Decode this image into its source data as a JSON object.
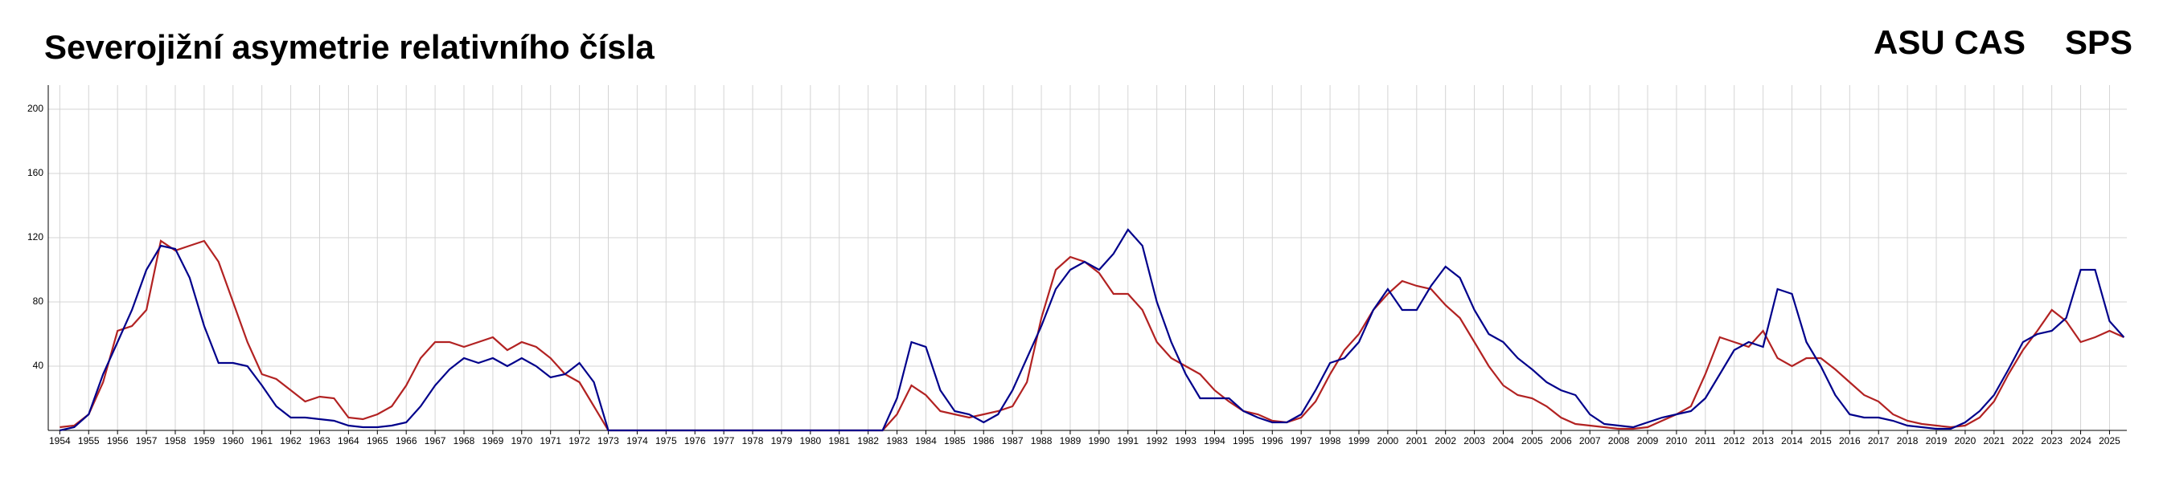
{
  "title": "Severojižní asymetrie relativního čísla",
  "labels": [
    "ASU CAS",
    "SPS"
  ],
  "chart_data": {
    "type": "line",
    "x": [
      1954,
      1954.5,
      1955,
      1955.5,
      1956,
      1956.5,
      1957,
      1957.5,
      1958,
      1958.5,
      1959,
      1959.5,
      1960,
      1960.5,
      1961,
      1961.5,
      1962,
      1962.5,
      1963,
      1963.5,
      1964,
      1964.5,
      1965,
      1965.5,
      1966,
      1966.5,
      1967,
      1967.5,
      1968,
      1968.5,
      1969,
      1969.5,
      1970,
      1970.5,
      1971,
      1971.5,
      1972,
      1972.5,
      1973,
      1973.5,
      1974,
      1974.5,
      1975,
      1975.5,
      1976,
      1976.5,
      1977,
      1977.5,
      1978,
      1978.5,
      1979,
      1979.5,
      1980,
      1980.5,
      1981,
      1981.5,
      1982,
      1982.5,
      1983,
      1983.5,
      1984,
      1984.5,
      1985,
      1985.5,
      1986,
      1986.5,
      1987,
      1987.5,
      1988,
      1988.5,
      1989,
      1989.5,
      1990,
      1990.5,
      1991,
      1991.5,
      1992,
      1992.5,
      1993,
      1993.5,
      1994,
      1994.5,
      1995,
      1995.5,
      1996,
      1996.5,
      1997,
      1997.5,
      1998,
      1998.5,
      1999,
      1999.5,
      2000,
      2000.5,
      2001,
      2001.5,
      2002,
      2002.5,
      2003,
      2003.5,
      2004,
      2004.5,
      2005,
      2005.5,
      2006,
      2006.5,
      2007,
      2007.5,
      2008,
      2008.5,
      2009,
      2009.5,
      2010,
      2010.5,
      2011,
      2011.5,
      2012,
      2012.5,
      2013,
      2013.5,
      2014,
      2014.5,
      2015,
      2015.5,
      2016,
      2016.5,
      2017,
      2017.5,
      2018,
      2018.5,
      2019,
      2019.5,
      2020,
      2020.5,
      2021,
      2021.5,
      2022,
      2022.5,
      2023,
      2023.5,
      2024,
      2024.5,
      2025,
      2025.5
    ],
    "series": [
      {
        "color": "#b22222",
        "values": [
          2,
          3,
          10,
          30,
          62,
          65,
          75,
          118,
          112,
          115,
          118,
          105,
          80,
          55,
          35,
          32,
          25,
          18,
          21,
          20,
          8,
          7,
          10,
          15,
          28,
          45,
          55,
          55,
          52,
          55,
          58,
          50,
          55,
          52,
          45,
          35,
          30,
          15,
          0,
          0,
          0,
          0,
          0,
          0,
          0,
          0,
          0,
          0,
          0,
          0,
          0,
          0,
          0,
          0,
          0,
          0,
          0,
          0,
          10,
          28,
          22,
          12,
          10,
          8,
          10,
          12,
          15,
          30,
          70,
          100,
          108,
          105,
          98,
          85,
          85,
          75,
          55,
          45,
          40,
          35,
          25,
          18,
          12,
          10,
          6,
          5,
          8,
          18,
          35,
          50,
          60,
          75,
          85,
          93,
          90,
          88,
          78,
          70,
          55,
          40,
          28,
          22,
          20,
          15,
          8,
          4,
          3,
          2,
          1,
          1,
          2,
          6,
          10,
          15,
          35,
          58,
          55,
          52,
          62,
          45,
          40,
          45,
          45,
          38,
          30,
          22,
          18,
          10,
          6,
          4,
          3,
          2,
          3,
          8,
          18,
          35,
          50,
          62,
          75,
          68,
          55,
          58,
          62,
          58
        ]
      },
      {
        "color": "#00008b",
        "values": [
          0,
          2,
          10,
          35,
          55,
          75,
          100,
          115,
          113,
          95,
          65,
          42,
          42,
          40,
          28,
          15,
          8,
          8,
          7,
          6,
          3,
          2,
          2,
          3,
          5,
          15,
          28,
          38,
          45,
          42,
          45,
          40,
          45,
          40,
          33,
          35,
          42,
          30,
          0,
          0,
          0,
          0,
          0,
          0,
          0,
          0,
          0,
          0,
          0,
          0,
          0,
          0,
          0,
          0,
          0,
          0,
          0,
          0,
          20,
          55,
          52,
          25,
          12,
          10,
          5,
          10,
          25,
          45,
          65,
          88,
          100,
          105,
          100,
          110,
          125,
          115,
          80,
          55,
          35,
          20,
          20,
          20,
          12,
          8,
          5,
          5,
          10,
          25,
          42,
          45,
          55,
          75,
          88,
          75,
          75,
          90,
          102,
          95,
          75,
          60,
          55,
          45,
          38,
          30,
          25,
          22,
          10,
          4,
          3,
          2,
          5,
          8,
          10,
          12,
          20,
          35,
          50,
          55,
          52,
          88,
          85,
          55,
          40,
          22,
          10,
          8,
          8,
          6,
          3,
          2,
          1,
          1,
          5,
          12,
          22,
          38,
          55,
          60,
          62,
          70,
          100,
          100,
          68,
          58
        ]
      }
    ],
    "xlim": [
      1953.6,
      2025.6
    ],
    "xticks": [
      1954,
      1955,
      1956,
      1957,
      1958,
      1959,
      1960,
      1961,
      1962,
      1963,
      1964,
      1965,
      1966,
      1967,
      1968,
      1969,
      1970,
      1971,
      1972,
      1973,
      1974,
      1975,
      1976,
      1977,
      1978,
      1979,
      1980,
      1981,
      1982,
      1983,
      1984,
      1985,
      1986,
      1987,
      1988,
      1989,
      1990,
      1991,
      1992,
      1993,
      1994,
      1995,
      1996,
      1997,
      1998,
      1999,
      2000,
      2001,
      2002,
      2003,
      2004,
      2005,
      2006,
      2007,
      2008,
      2009,
      2010,
      2011,
      2012,
      2013,
      2014,
      2015,
      2016,
      2017,
      2018,
      2019,
      2020,
      2021,
      2022,
      2023,
      2024,
      2025
    ],
    "ylim": [
      0,
      215
    ],
    "yticks": [
      40,
      80,
      120,
      160,
      200
    ],
    "grid": true
  }
}
